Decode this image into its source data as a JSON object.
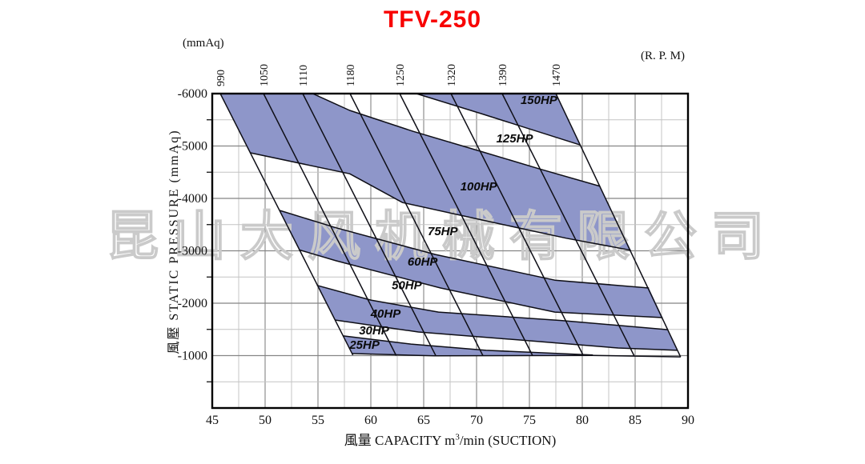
{
  "title": "TFV-250",
  "units": {
    "pressure": "(mmAq)",
    "speed": "(R. P. M)"
  },
  "watermark": "昆山大风机械有限公司",
  "y_axis_title": "風壓 STATIC PRESSURE (mmAq)",
  "x_axis_title": {
    "prefix": "風量  CAPACITY  m",
    "sup": "3",
    "suffix": "/min (SUCTION)"
  },
  "chart_data": {
    "type": "area",
    "title": "TFV-250",
    "x_axis": {
      "label": "CAPACITY m3/min (SUCTION)",
      "min": 45,
      "max": 90,
      "major_step": 5,
      "minor_step": 2.5,
      "ticks": [
        "45",
        "50",
        "55",
        "60",
        "65",
        "70",
        "75",
        "80",
        "85",
        "90"
      ]
    },
    "y_axis": {
      "label": "STATIC PRESSURE (mmAq)",
      "min": -6000,
      "max": 0,
      "major_step": 1000,
      "minor_step": 500,
      "ticks": [
        "-6000",
        "-5000",
        "-4000",
        "-3000",
        "-2000",
        "-1000"
      ],
      "note": "suction pressure, plotted as negative; geometry below uses positive magnitudes"
    },
    "rpm_lines": [
      {
        "rpm": "990",
        "from": [
          45.76,
          6000
        ],
        "to": [
          58.3,
          1010
        ]
      },
      {
        "rpm": "1050",
        "from": [
          49.85,
          6000
        ],
        "to": [
          62.4,
          1000
        ]
      },
      {
        "rpm": "1110",
        "from": [
          53.56,
          6000
        ],
        "to": [
          66.15,
          995
        ]
      },
      {
        "rpm": "1180",
        "from": [
          58.03,
          6000
        ],
        "to": [
          70.6,
          1000
        ]
      },
      {
        "rpm": "1250",
        "from": [
          62.73,
          6000
        ],
        "to": [
          75.3,
          1000
        ]
      },
      {
        "rpm": "1320",
        "from": [
          67.58,
          6000
        ],
        "to": [
          80.1,
          1000
        ]
      },
      {
        "rpm": "1390",
        "from": [
          72.42,
          6000
        ],
        "to": [
          84.9,
          1000
        ]
      },
      {
        "rpm": "1470",
        "from": [
          77.5,
          6000
        ],
        "to": [
          89.3,
          975
        ]
      }
    ],
    "hp_zones": [
      {
        "hp": "150HP",
        "filled": true,
        "label_at": [
          75.9,
          5880
        ],
        "polygon": [
          [
            64.3,
            6000
          ],
          [
            77.5,
            6000
          ],
          [
            79.8,
            5020
          ],
          [
            70.4,
            5620
          ]
        ]
      },
      {
        "hp": "125HP",
        "filled": false,
        "label_at": [
          73.6,
          5145
        ],
        "polygon": null
      },
      {
        "hp": "100HP",
        "filled": true,
        "label_at": [
          70.2,
          4230
        ],
        "polygon": [
          [
            45.76,
            6000
          ],
          [
            54.5,
            6000
          ],
          [
            58.0,
            5680
          ],
          [
            64.0,
            5280
          ],
          [
            70.6,
            4885
          ],
          [
            76.0,
            4560
          ],
          [
            81.7,
            4230
          ],
          [
            84.6,
            3010
          ],
          [
            78.5,
            3240
          ],
          [
            72.3,
            3510
          ],
          [
            63.0,
            3920
          ],
          [
            58.0,
            4470
          ],
          [
            48.6,
            4870
          ]
        ]
      },
      {
        "hp": "75HP",
        "filled": false,
        "label_at": [
          66.8,
          3375
        ],
        "polygon": null
      },
      {
        "hp": "60HP",
        "filled": true,
        "label_at": [
          64.9,
          2795
        ],
        "polygon": [
          [
            51.4,
            3770
          ],
          [
            56.7,
            3440
          ],
          [
            66.1,
            2930
          ],
          [
            77.4,
            2440
          ],
          [
            86.3,
            2290
          ],
          [
            87.6,
            1725
          ],
          [
            77.4,
            1830
          ],
          [
            66.6,
            2290
          ],
          [
            56.7,
            2810
          ],
          [
            53.2,
            3020
          ]
        ]
      },
      {
        "hp": "50HP",
        "filled": false,
        "label_at": [
          63.4,
          2340
        ],
        "polygon": null
      },
      {
        "hp": "40HP",
        "filled": true,
        "label_at": [
          61.4,
          1800
        ],
        "polygon": [
          [
            54.9,
            2340
          ],
          [
            60.0,
            2060
          ],
          [
            66.4,
            1830
          ],
          [
            78.0,
            1670
          ],
          [
            88.1,
            1495
          ],
          [
            89.0,
            1100
          ],
          [
            83.4,
            1145
          ],
          [
            74.0,
            1300
          ],
          [
            64.5,
            1450
          ],
          [
            56.6,
            1680
          ]
        ]
      },
      {
        "hp": "30HP",
        "filled": false,
        "label_at": [
          60.3,
          1480
        ],
        "polygon": null
      },
      {
        "hp": "25HP",
        "filled": true,
        "label_at": [
          59.4,
          1205
        ],
        "polygon": [
          [
            57.4,
            1375
          ],
          [
            63.8,
            1220
          ],
          [
            70.9,
            1100
          ],
          [
            81.0,
            1010
          ],
          [
            66.0,
            995
          ],
          [
            58.2,
            1040
          ]
        ]
      }
    ],
    "boundaries": [
      [
        [
          64.3,
          6000
        ],
        [
          70.4,
          5620
        ],
        [
          79.8,
          5020
        ]
      ],
      [
        [
          54.5,
          6000
        ],
        [
          58.0,
          5680
        ],
        [
          64.0,
          5280
        ],
        [
          70.6,
          4885
        ],
        [
          76.0,
          4560
        ],
        [
          81.7,
          4230
        ]
      ],
      [
        [
          48.6,
          4870
        ],
        [
          58.0,
          4470
        ],
        [
          63.0,
          3920
        ],
        [
          72.3,
          3510
        ],
        [
          78.5,
          3240
        ],
        [
          84.6,
          3010
        ]
      ],
      [
        [
          51.4,
          3770
        ],
        [
          56.7,
          3440
        ],
        [
          66.1,
          2930
        ],
        [
          77.4,
          2440
        ],
        [
          86.3,
          2290
        ]
      ],
      [
        [
          53.2,
          3020
        ],
        [
          56.7,
          2810
        ],
        [
          66.6,
          2290
        ],
        [
          77.4,
          1830
        ],
        [
          87.6,
          1725
        ]
      ],
      [
        [
          54.9,
          2340
        ],
        [
          60.0,
          2060
        ],
        [
          66.4,
          1830
        ],
        [
          78.0,
          1670
        ],
        [
          88.1,
          1495
        ]
      ],
      [
        [
          56.6,
          1680
        ],
        [
          64.5,
          1450
        ],
        [
          74.0,
          1300
        ],
        [
          83.4,
          1145
        ],
        [
          89.0,
          1100
        ]
      ],
      [
        [
          57.4,
          1375
        ],
        [
          63.8,
          1220
        ],
        [
          70.9,
          1100
        ],
        [
          81.0,
          1010
        ]
      ],
      [
        [
          58.2,
          1040
        ],
        [
          66.0,
          995
        ],
        [
          81.0,
          1005
        ],
        [
          89.3,
          975
        ]
      ]
    ],
    "styles": {
      "band_fill": "#8e96c9",
      "line_color": "#0e0e16",
      "grid_minor": "#c4c4c4",
      "grid_major": "#858585",
      "watermark_color": "#cacaca",
      "title_color": "#f80000"
    }
  }
}
